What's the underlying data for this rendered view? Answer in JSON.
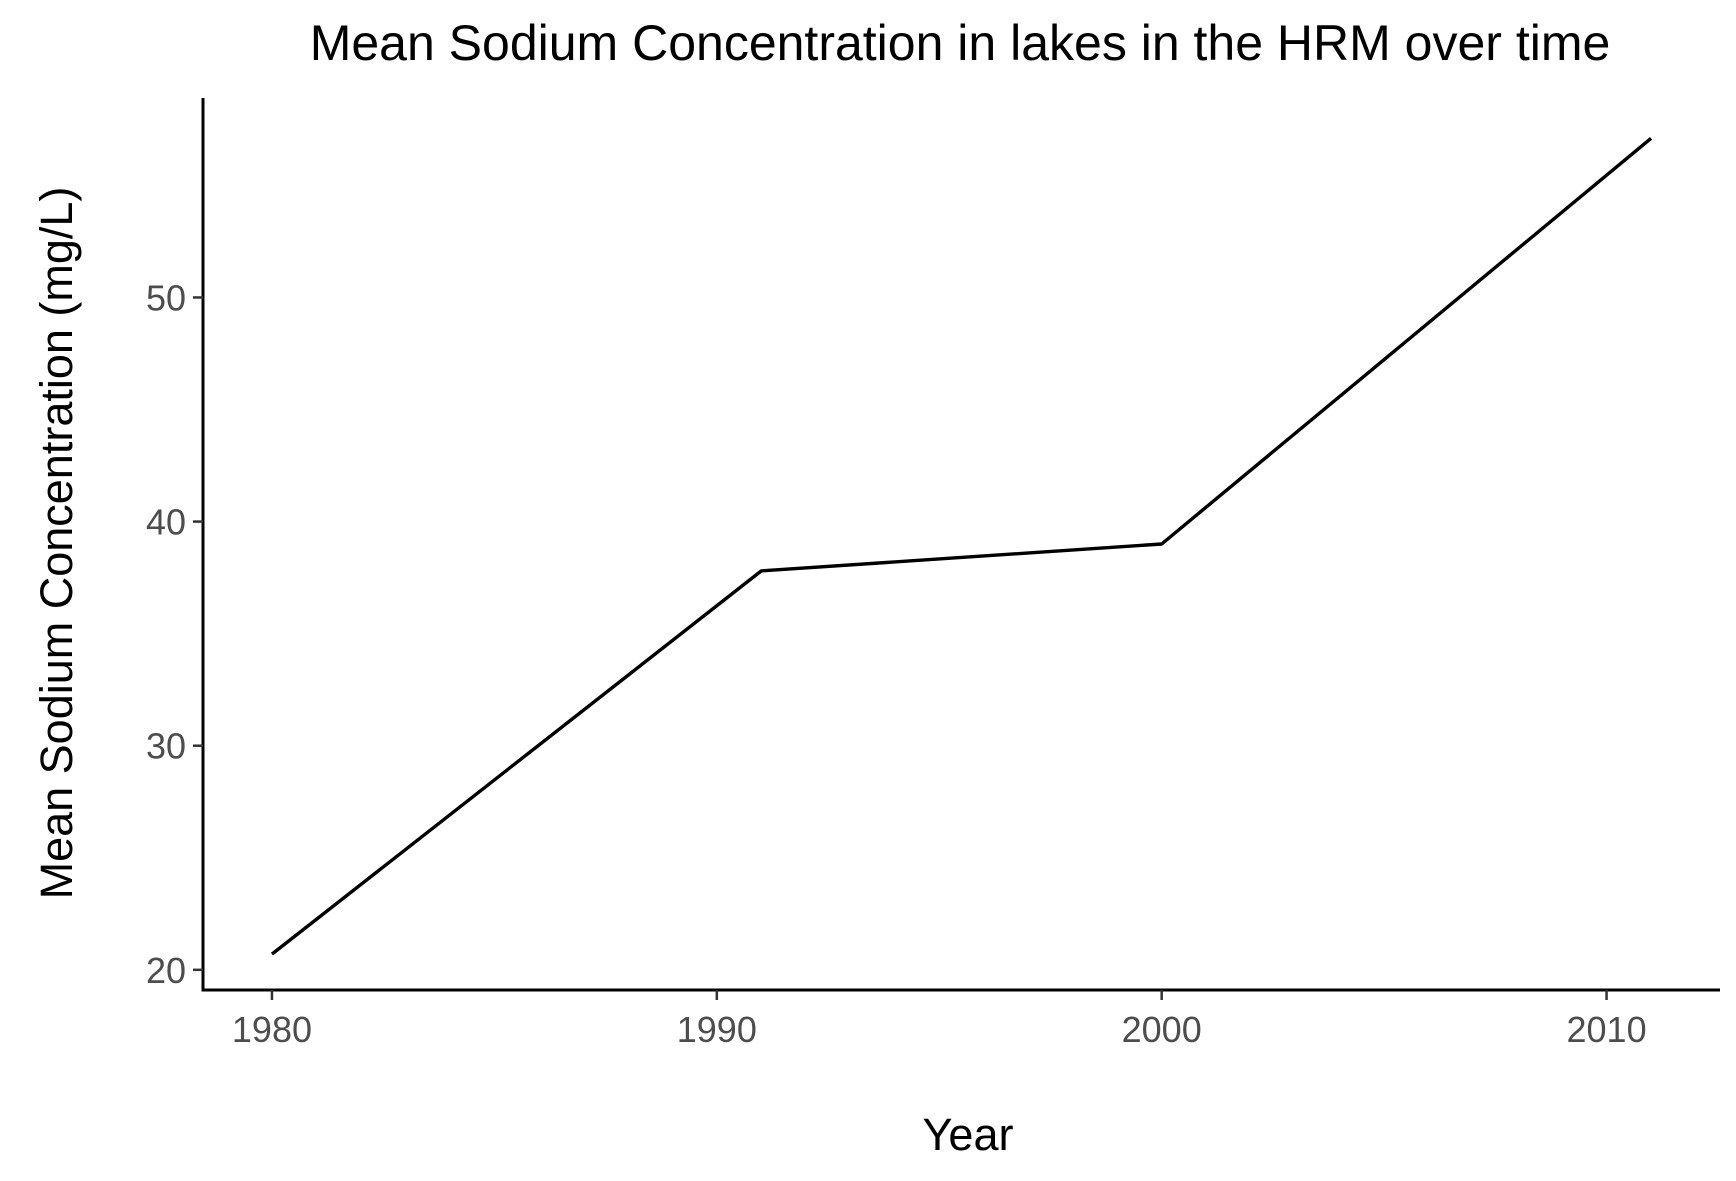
{
  "chart_data": {
    "type": "line",
    "title": "Mean Sodium Concentration in lakes in the HRM over time",
    "xlabel": "Year",
    "ylabel": "Mean Sodium Concentration (mg/L)",
    "x": [
      1980,
      1991,
      2000,
      2011
    ],
    "series": [
      {
        "values": [
          20.7,
          37.8,
          39.0,
          57.1
        ],
        "color": "#000000"
      }
    ],
    "xlim": [
      1978.45,
      2012.55
    ],
    "ylim": [
      19.1,
      58.9
    ],
    "xticks": [
      1980,
      1990,
      2000,
      2010
    ],
    "xtick_labels": [
      "1980",
      "1990",
      "2000",
      "2010"
    ],
    "yticks": [
      20,
      30,
      40,
      50
    ],
    "ytick_labels": [
      "20",
      "30",
      "40",
      "50"
    ],
    "grid": false,
    "legend": "none"
  }
}
